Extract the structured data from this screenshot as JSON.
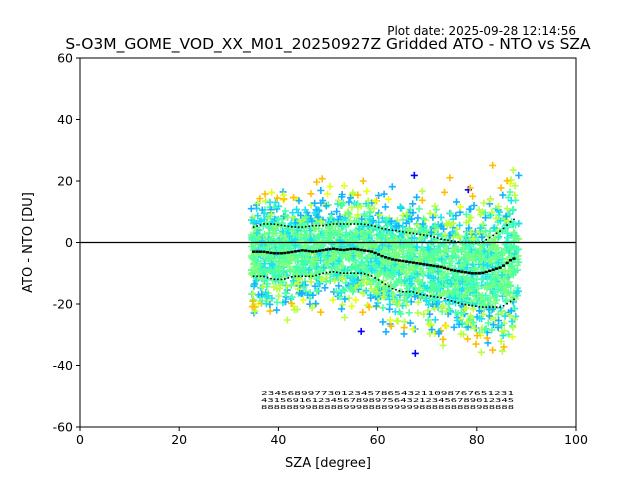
{
  "header": {
    "plot_date": "Plot date: 2025-09-28 12:14:56",
    "title": "S-O3M_GOME_VOD_XX_M01_20250927Z Gridded ATO - NTO vs SZA"
  },
  "chart_data": {
    "type": "scatter",
    "title": "S-O3M_GOME_VOD_XX_M01_20250927Z Gridded ATO - NTO vs SZA",
    "xlabel": "SZA [degree]",
    "ylabel": "ATO - NTO [DU]",
    "xlim": [
      0,
      100
    ],
    "ylim": [
      -60,
      60
    ],
    "xticks": [
      0,
      20,
      40,
      60,
      80,
      100
    ],
    "yticks": [
      -60,
      -40,
      -20,
      0,
      20,
      40,
      60
    ],
    "zero_line": 0,
    "scatter_extent": {
      "sza_min": 34.5,
      "sza_max": 88.5
    },
    "scatter_colors": [
      "#40ffb7",
      "#1de1ef",
      "#4cffa0",
      "#7dff79",
      "#14b2ff",
      "#b7ff40",
      "#e8ff0f",
      "#ffbd00",
      "#0000ff",
      "#73ff83"
    ],
    "series": [
      {
        "name": "median",
        "style": "solid-markers",
        "color": "#000000",
        "x": [
          35,
          37,
          39,
          41,
          43,
          45,
          47,
          49,
          51,
          53,
          55,
          57,
          59,
          61,
          63,
          65,
          67,
          69,
          71,
          73,
          75,
          77,
          79,
          81,
          83,
          85,
          87,
          88
        ],
        "y": [
          -3,
          -3,
          -3.5,
          -3.5,
          -3,
          -2.5,
          -3,
          -2.5,
          -2,
          -2.5,
          -2,
          -2.5,
          -3,
          -4.5,
          -5.5,
          -6,
          -6.5,
          -7,
          -7.5,
          -8,
          -9,
          -9.5,
          -10,
          -10,
          -9,
          -8,
          -5.5,
          -5
        ]
      },
      {
        "name": "upper_band",
        "style": "dotted",
        "color": "#000000",
        "x": [
          35,
          37,
          39,
          41,
          43,
          45,
          47,
          49,
          51,
          53,
          55,
          57,
          59,
          61,
          63,
          65,
          67,
          69,
          71,
          73,
          75,
          77,
          79,
          81,
          83,
          85,
          87,
          88
        ],
        "y": [
          5,
          6,
          6,
          5.5,
          5,
          5,
          5.5,
          5.5,
          6,
          6,
          6,
          6,
          5.5,
          4.5,
          4,
          3.5,
          3,
          2.5,
          2,
          1,
          0.5,
          0,
          0,
          0,
          2,
          4,
          7,
          8
        ]
      },
      {
        "name": "lower_band",
        "style": "dotted",
        "color": "#000000",
        "x": [
          35,
          37,
          39,
          41,
          43,
          45,
          47,
          49,
          51,
          53,
          55,
          57,
          59,
          61,
          63,
          65,
          67,
          69,
          71,
          73,
          75,
          77,
          79,
          81,
          83,
          85,
          87,
          88
        ],
        "y": [
          -11,
          -11,
          -12,
          -12,
          -11,
          -11,
          -11,
          -10,
          -9.5,
          -10,
          -10,
          -10,
          -11,
          -13,
          -15,
          -16,
          -16,
          -17,
          -17.5,
          -18,
          -19,
          -20,
          -20.5,
          -21,
          -21,
          -21,
          -19,
          -18
        ]
      }
    ],
    "count_rows": [
      "23456899773012345786543211098767651231",
      "4315691612345678989756432123456789012345",
      "8888889988888999888899999888888888988888"
    ]
  }
}
